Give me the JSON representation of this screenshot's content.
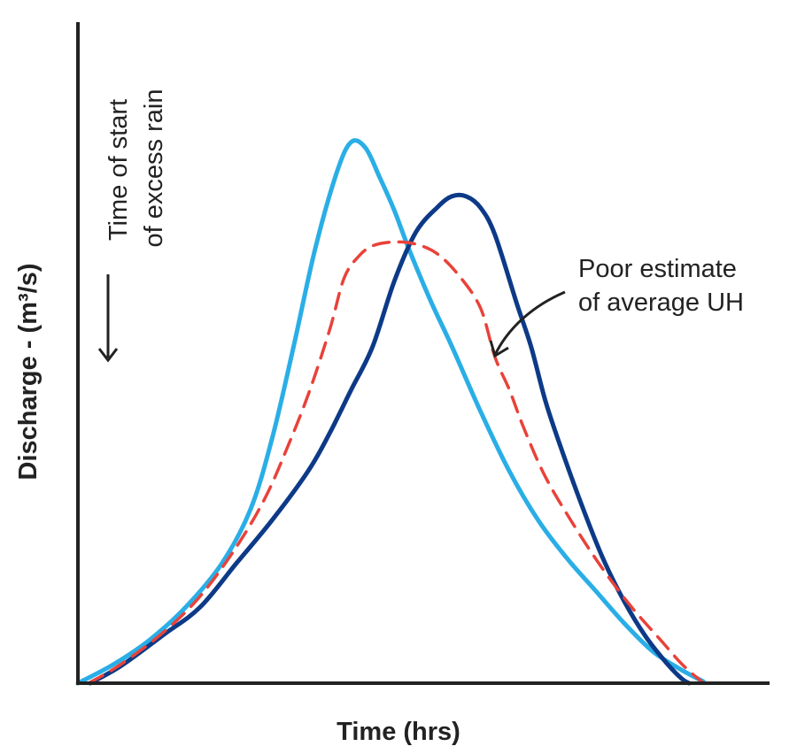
{
  "chart_data": {
    "type": "line",
    "title": "",
    "xlabel": "Time (hrs)",
    "ylabel": "Discharge - (m³/s)",
    "xlim": [
      0,
      100
    ],
    "ylim": [
      0,
      100
    ],
    "ticks_shown": false,
    "grid": false,
    "legend": "none",
    "colors": {
      "axis": "#222222",
      "uh_a": "#2aaee6",
      "uh_b": "#0d3a87",
      "average": "#e8423a",
      "arrow": "#222222"
    },
    "series": [
      {
        "style": "solid",
        "color": "#2aaee6",
        "points": [
          [
            0,
            0
          ],
          [
            5,
            3.5
          ],
          [
            10,
            8
          ],
          [
            15,
            14
          ],
          [
            20,
            22
          ],
          [
            24,
            32
          ],
          [
            27,
            45
          ],
          [
            30,
            62
          ],
          [
            33,
            80
          ],
          [
            36,
            94
          ],
          [
            38,
            99.6
          ],
          [
            40,
            98.5
          ],
          [
            42,
            93
          ],
          [
            44,
            87
          ],
          [
            46,
            80
          ],
          [
            49,
            70.5
          ],
          [
            52,
            62
          ],
          [
            56,
            50
          ],
          [
            60,
            39
          ],
          [
            64,
            30
          ],
          [
            68,
            23
          ],
          [
            72,
            17
          ],
          [
            76,
            11
          ],
          [
            80,
            5.8
          ],
          [
            84,
            2.4
          ],
          [
            87,
            0.3
          ]
        ]
      },
      {
        "style": "solid",
        "color": "#0d3a87",
        "points": [
          [
            1.7,
            0
          ],
          [
            6,
            3.2
          ],
          [
            12,
            9
          ],
          [
            17,
            14
          ],
          [
            22,
            22
          ],
          [
            27,
            30
          ],
          [
            32,
            39
          ],
          [
            35,
            46
          ],
          [
            38,
            54
          ],
          [
            41,
            62
          ],
          [
            44,
            74
          ],
          [
            47,
            83
          ],
          [
            50,
            87.6
          ],
          [
            52,
            89.6
          ],
          [
            54,
            89.6
          ],
          [
            56,
            87.5
          ],
          [
            58,
            82.5
          ],
          [
            61,
            70
          ],
          [
            63,
            62
          ],
          [
            65,
            52
          ],
          [
            67,
            44
          ],
          [
            70,
            33
          ],
          [
            73,
            23
          ],
          [
            76,
            15
          ],
          [
            79,
            8.5
          ],
          [
            82,
            3.5
          ],
          [
            84,
            0.8
          ],
          [
            85,
            0
          ]
        ]
      },
      {
        "style": "dashed",
        "color": "#e8423a",
        "points": [
          [
            1.5,
            0
          ],
          [
            6,
            3.5
          ],
          [
            12,
            9.5
          ],
          [
            17,
            16
          ],
          [
            22,
            25
          ],
          [
            26,
            34
          ],
          [
            29,
            43
          ],
          [
            32,
            53
          ],
          [
            35,
            65
          ],
          [
            37,
            74.5
          ],
          [
            39,
            78.5
          ],
          [
            41,
            80.5
          ],
          [
            44,
            81.2
          ],
          [
            47,
            80.8
          ],
          [
            50,
            79
          ],
          [
            53,
            75
          ],
          [
            56,
            69
          ],
          [
            58,
            60
          ],
          [
            60,
            54
          ],
          [
            62,
            47
          ],
          [
            65,
            38
          ],
          [
            69,
            29
          ],
          [
            73,
            21
          ],
          [
            77,
            14
          ],
          [
            81,
            8
          ],
          [
            84,
            3.5
          ],
          [
            87,
            0
          ]
        ]
      }
    ],
    "annotations": {
      "event_line1": "Time of start",
      "event_line2": "of excess rain",
      "callout_line1": "Poor estimate",
      "callout_line2": "of average UH"
    }
  }
}
